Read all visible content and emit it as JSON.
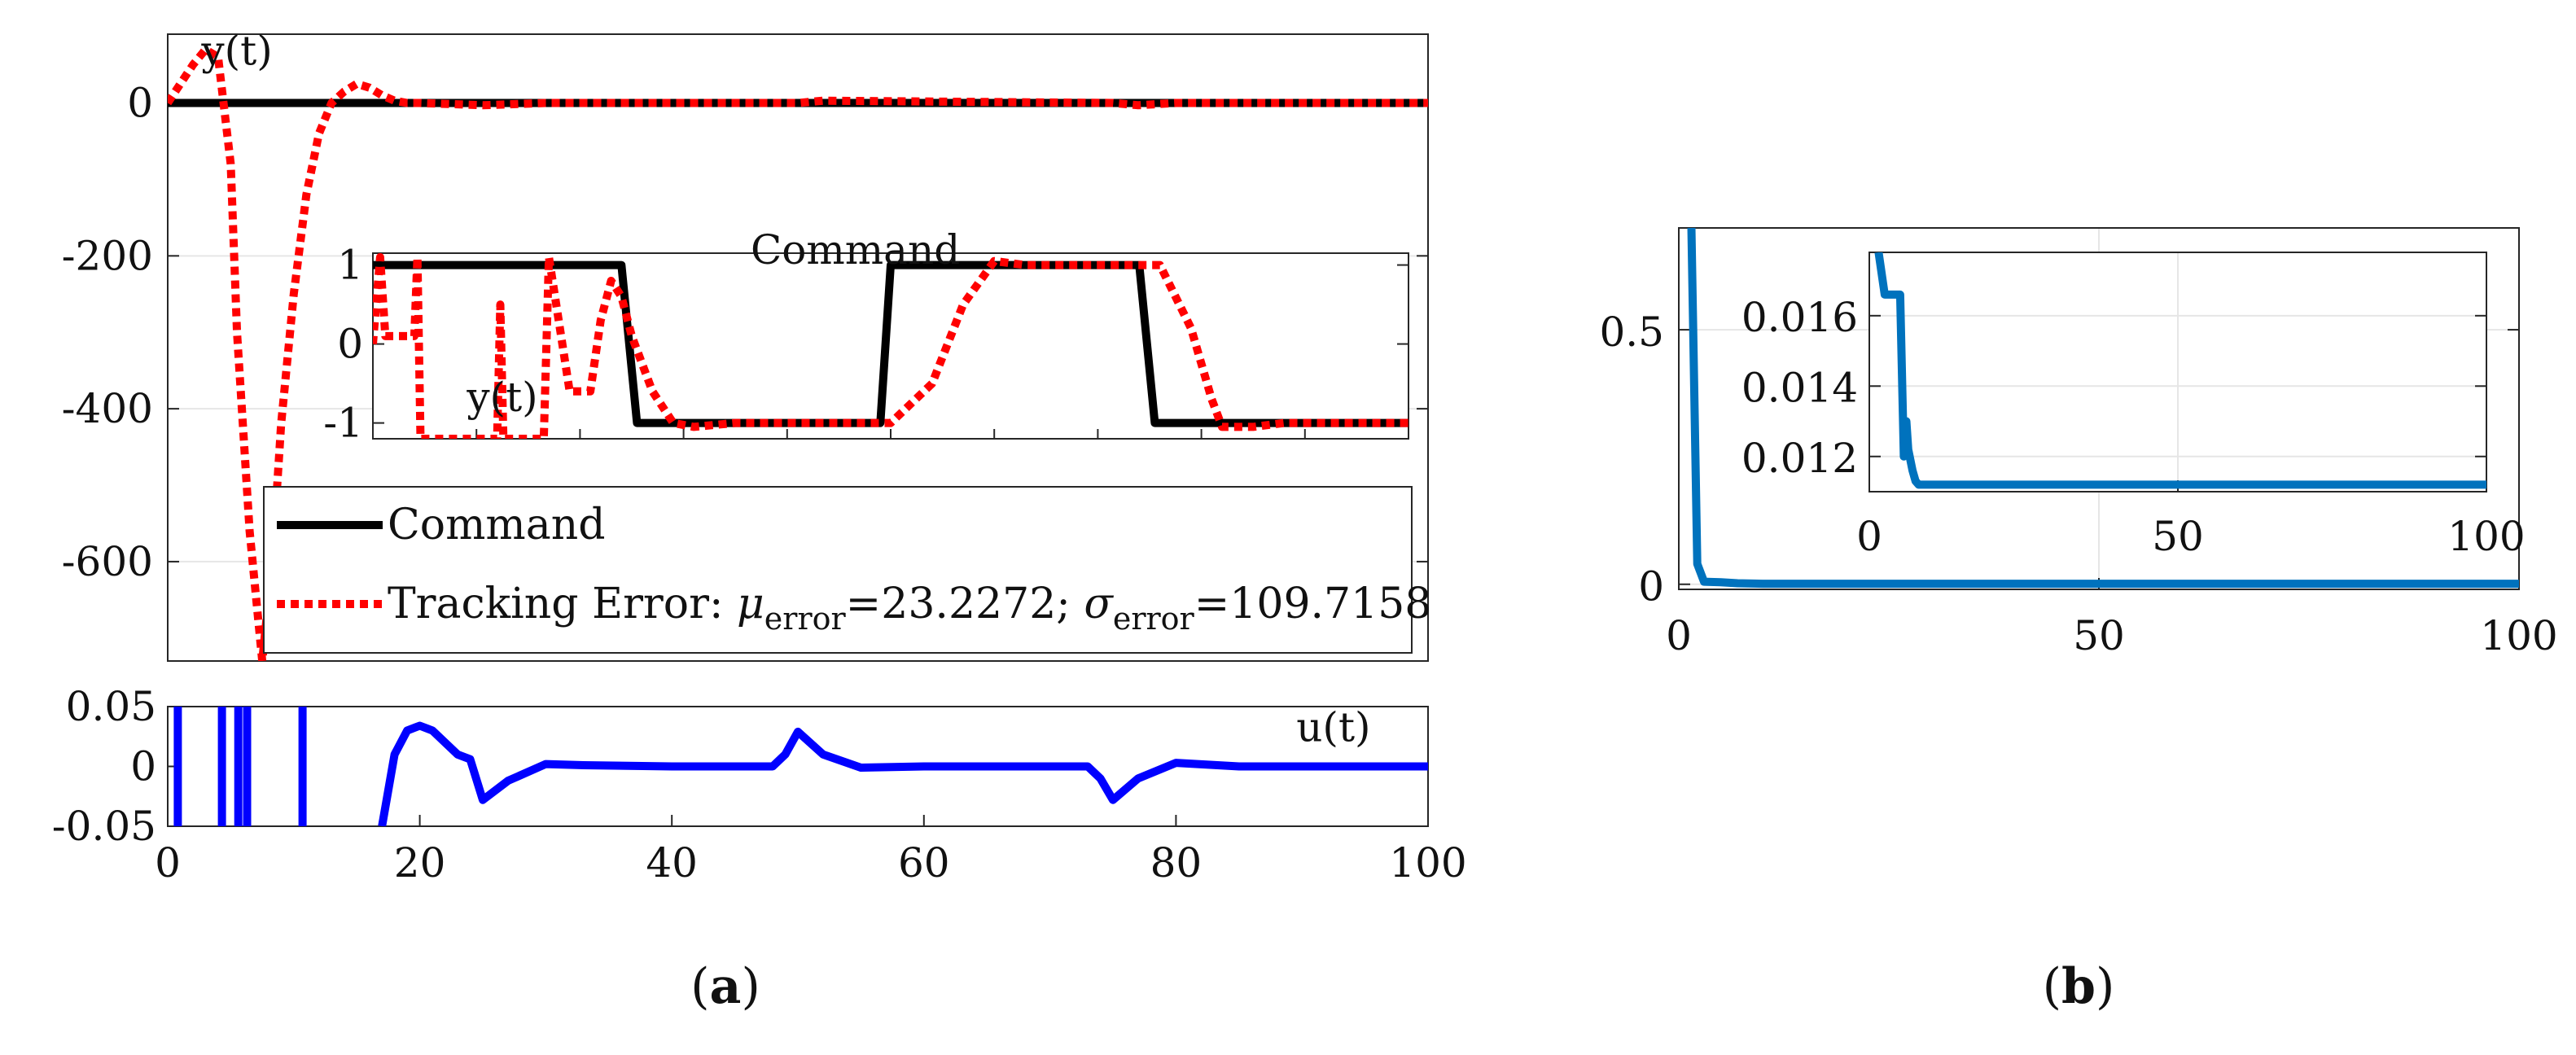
{
  "figure": {
    "caption_a": {
      "open": "(",
      "letter": "a",
      "close": ")"
    },
    "caption_b": {
      "open": "(",
      "letter": "b",
      "close": ")"
    }
  },
  "colors": {
    "command": "#000000",
    "tracking_error": "#ff0000",
    "control": "#0000ff",
    "panel_b": "#0072bd",
    "axis": "#262626",
    "grid": "#e6e6e6"
  },
  "chart_data": [
    {
      "id": "a-main",
      "type": "line",
      "xlim": [
        0,
        100
      ],
      "ylim": [
        -730,
        90
      ],
      "yticks": [
        -600,
        -400,
        -200,
        0
      ],
      "yticklabels": [
        "-600",
        "-400",
        "-200",
        "0"
      ],
      "grid": true,
      "annotations": [
        {
          "text": "y(t)",
          "x": 5.5,
          "y": 50
        }
      ],
      "series": [
        {
          "name": "Command",
          "style": "solid",
          "x": [
            0,
            100
          ],
          "y": [
            0,
            0
          ]
        },
        {
          "name": "Tracking Error",
          "style": "dotted",
          "x": [
            0,
            1,
            2,
            3,
            4,
            5,
            5.5,
            6.5,
            7.5,
            8.3,
            9,
            10,
            11,
            12,
            13,
            14,
            15,
            16,
            17,
            18,
            19,
            20,
            25,
            30,
            50,
            52,
            75,
            77,
            80,
            90,
            100
          ],
          "y": [
            0,
            25,
            50,
            70,
            60,
            -80,
            -300,
            -560,
            -730,
            -600,
            -420,
            -250,
            -120,
            -40,
            0,
            15,
            25,
            20,
            10,
            3,
            0,
            0,
            -3,
            0,
            0,
            3,
            0,
            -3,
            0,
            0,
            0
          ]
        }
      ],
      "legend": {
        "position": "lower-right",
        "entries": [
          {
            "label": "Command"
          },
          {
            "label_prefix": "Tracking Error: ",
            "mu_symbol": "μ",
            "mu_sub": "error",
            "mu_value": "=23.2272; ",
            "sigma_symbol": "σ",
            "sigma_sub": "error",
            "sigma_value": "=109.7158"
          }
        ]
      }
    },
    {
      "id": "a-inset",
      "type": "line",
      "title": "Command",
      "xlim": [
        0,
        100
      ],
      "ylim": [
        -1.2,
        1.15
      ],
      "yticks": [
        -1,
        0,
        1
      ],
      "yticklabels": [
        "-1",
        "0",
        "1"
      ],
      "annotations": [
        {
          "text": "y(t)",
          "x": 12.5,
          "y": -0.85
        }
      ],
      "series": [
        {
          "name": "Command",
          "style": "solid",
          "x": [
            0,
            24,
            25.5,
            49,
            50,
            74,
            75.5,
            100
          ],
          "y": [
            1,
            1,
            -1,
            -1,
            1,
            1,
            -1,
            -1
          ]
        },
        {
          "name": "y(t)",
          "style": "dotted",
          "x": [
            0,
            0.7,
            1.2,
            4,
            4.3,
            4.6,
            12,
            12.3,
            12.6,
            16.5,
            17,
            19,
            21,
            22,
            23,
            24,
            25,
            27,
            29,
            31,
            35,
            50,
            54,
            57,
            60,
            63,
            76,
            79,
            81,
            82,
            85,
            88,
            100
          ],
          "y": [
            0,
            1.1,
            0.1,
            0.1,
            1.1,
            -1.2,
            -1.2,
            0.5,
            -1.2,
            -1.2,
            1.1,
            -0.6,
            -0.6,
            0.3,
            0.8,
            0.6,
            0.1,
            -0.6,
            -1.0,
            -1.05,
            -1,
            -1,
            -0.5,
            0.5,
            1.05,
            1,
            1,
            0.2,
            -0.7,
            -1.05,
            -1.05,
            -1,
            -1
          ]
        }
      ]
    },
    {
      "id": "a-control",
      "type": "line",
      "xlim": [
        0,
        100
      ],
      "ylim": [
        -0.05,
        0.05
      ],
      "xticks": [
        0,
        20,
        40,
        60,
        80,
        100
      ],
      "xticklabels": [
        "0",
        "20",
        "40",
        "60",
        "80",
        "100"
      ],
      "yticks": [
        -0.05,
        0,
        0.05
      ],
      "yticklabels": [
        "-0.05",
        "0",
        "0.05"
      ],
      "annotations": [
        {
          "text": "u(t)",
          "x": 92.5,
          "y": 0.021
        }
      ],
      "series": [
        {
          "name": "u(t)",
          "style": "solid",
          "segments": [
            {
              "x": [
                0.8,
                0.8
              ],
              "y": [
                -0.05,
                0.05
              ]
            },
            {
              "x": [
                4.3,
                4.3
              ],
              "y": [
                -0.05,
                0.05
              ]
            },
            {
              "x": [
                5.6,
                5.6
              ],
              "y": [
                -0.05,
                0.05
              ]
            },
            {
              "x": [
                6.3,
                6.3
              ],
              "y": [
                -0.05,
                0.05
              ]
            },
            {
              "x": [
                10.7,
                10.7
              ],
              "y": [
                -0.05,
                0.05
              ]
            },
            {
              "x": [
                17,
                18,
                19,
                20,
                21,
                22,
                23,
                24,
                25,
                27,
                30,
                33,
                40,
                48,
                49,
                50,
                52,
                55,
                60,
                73,
                74,
                75,
                77,
                80,
                85,
                100
              ],
              "y": [
                -0.05,
                0.01,
                0.03,
                0.034,
                0.03,
                0.02,
                0.01,
                0.006,
                -0.028,
                -0.012,
                0.002,
                0.001,
                0,
                0,
                0.01,
                0.029,
                0.01,
                -0.001,
                0,
                0,
                -0.01,
                -0.028,
                -0.01,
                0.003,
                0,
                0
              ]
            }
          ]
        }
      ]
    },
    {
      "id": "b-main",
      "type": "line",
      "xlim": [
        0,
        100
      ],
      "ylim": [
        -0.01,
        0.7
      ],
      "xticks": [
        0,
        50,
        100
      ],
      "xticklabels": [
        "0",
        "50",
        "100"
      ],
      "yticks": [
        0,
        0.5
      ],
      "yticklabels": [
        "0",
        "0.5"
      ],
      "grid": true,
      "series": [
        {
          "name": "b",
          "style": "solid",
          "x": [
            1.5,
            2.2,
            3,
            5,
            7,
            10,
            100
          ],
          "y": [
            0.7,
            0.04,
            0.005,
            0.004,
            0.002,
            0.001,
            0.001
          ]
        }
      ]
    },
    {
      "id": "b-inset",
      "type": "line",
      "xlim": [
        0,
        100
      ],
      "ylim": [
        0.011,
        0.0178
      ],
      "xticks": [
        0,
        50,
        100
      ],
      "xticklabels": [
        "0",
        "50",
        "100"
      ],
      "yticks": [
        0.012,
        0.014,
        0.016
      ],
      "yticklabels": [
        "0.012",
        "0.014",
        "0.016"
      ],
      "grid": true,
      "series": [
        {
          "name": "b-inset",
          "style": "solid",
          "x": [
            1.5,
            2.5,
            5,
            5.6,
            6,
            6.3,
            7,
            7.5,
            8,
            10,
            100
          ],
          "y": [
            0.0178,
            0.0166,
            0.0166,
            0.012,
            0.013,
            0.0122,
            0.0116,
            0.0113,
            0.0112,
            0.0112,
            0.0112
          ]
        }
      ]
    }
  ]
}
